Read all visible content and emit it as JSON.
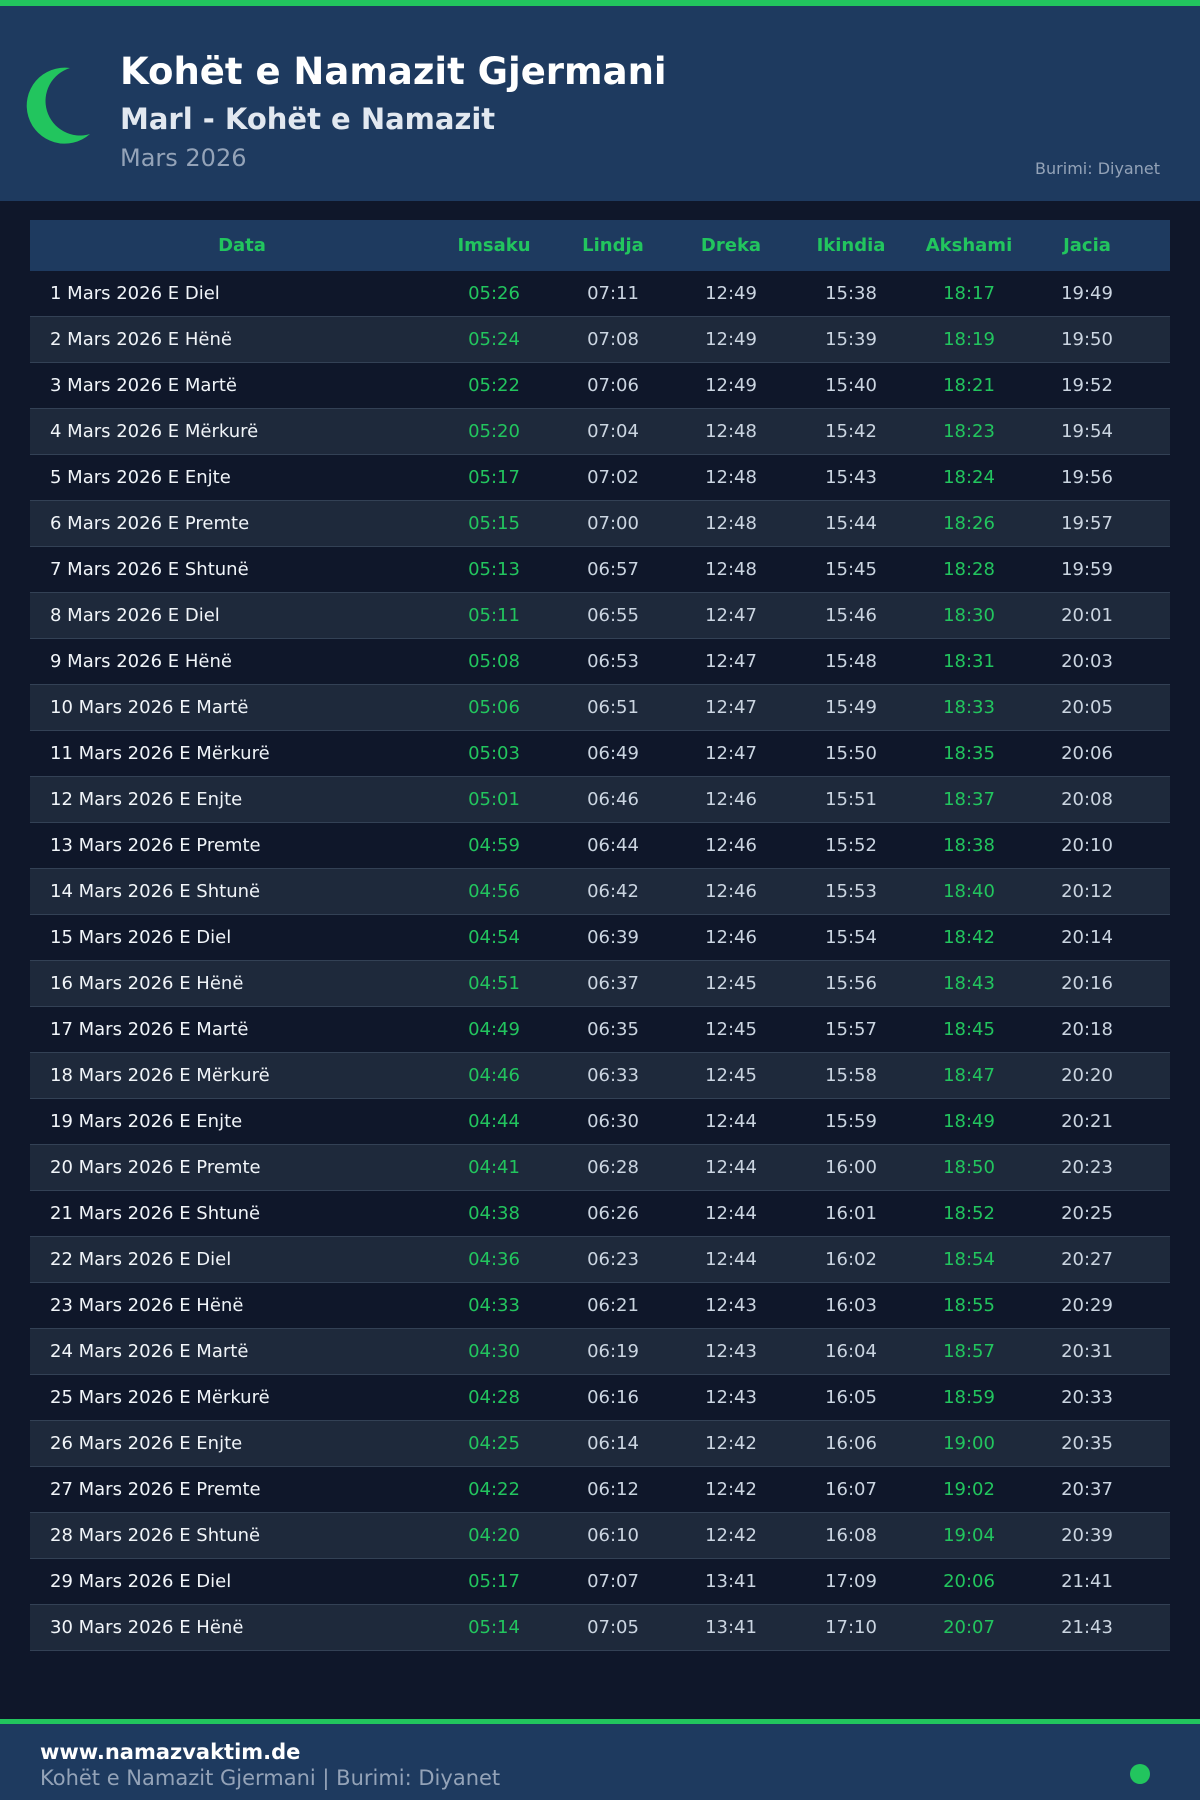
{
  "header": {
    "title": "Kohët e Namazit Gjermani",
    "subtitle": "Marl - Kohët e Namazit",
    "month": "Mars 2026",
    "source": "Burimi: Diyanet"
  },
  "colors": {
    "accent": "#22c55e",
    "header_bg": "#1e3a5f",
    "page_bg": "#0f172a"
  },
  "icons": {
    "logo": "crescent-moon-icon"
  },
  "table": {
    "columns": [
      "Data",
      "Imsaku",
      "Lindja",
      "Dreka",
      "Ikindia",
      "Akshami",
      "Jacia"
    ],
    "rows": [
      [
        "1 Mars 2026 E Diel",
        "05:26",
        "07:11",
        "12:49",
        "15:38",
        "18:17",
        "19:49"
      ],
      [
        "2 Mars 2026 E Hënë",
        "05:24",
        "07:08",
        "12:49",
        "15:39",
        "18:19",
        "19:50"
      ],
      [
        "3 Mars 2026 E Martë",
        "05:22",
        "07:06",
        "12:49",
        "15:40",
        "18:21",
        "19:52"
      ],
      [
        "4 Mars 2026 E Mërkurë",
        "05:20",
        "07:04",
        "12:48",
        "15:42",
        "18:23",
        "19:54"
      ],
      [
        "5 Mars 2026 E Enjte",
        "05:17",
        "07:02",
        "12:48",
        "15:43",
        "18:24",
        "19:56"
      ],
      [
        "6 Mars 2026 E Premte",
        "05:15",
        "07:00",
        "12:48",
        "15:44",
        "18:26",
        "19:57"
      ],
      [
        "7 Mars 2026 E Shtunë",
        "05:13",
        "06:57",
        "12:48",
        "15:45",
        "18:28",
        "19:59"
      ],
      [
        "8 Mars 2026 E Diel",
        "05:11",
        "06:55",
        "12:47",
        "15:46",
        "18:30",
        "20:01"
      ],
      [
        "9 Mars 2026 E Hënë",
        "05:08",
        "06:53",
        "12:47",
        "15:48",
        "18:31",
        "20:03"
      ],
      [
        "10 Mars 2026 E Martë",
        "05:06",
        "06:51",
        "12:47",
        "15:49",
        "18:33",
        "20:05"
      ],
      [
        "11 Mars 2026 E Mërkurë",
        "05:03",
        "06:49",
        "12:47",
        "15:50",
        "18:35",
        "20:06"
      ],
      [
        "12 Mars 2026 E Enjte",
        "05:01",
        "06:46",
        "12:46",
        "15:51",
        "18:37",
        "20:08"
      ],
      [
        "13 Mars 2026 E Premte",
        "04:59",
        "06:44",
        "12:46",
        "15:52",
        "18:38",
        "20:10"
      ],
      [
        "14 Mars 2026 E Shtunë",
        "04:56",
        "06:42",
        "12:46",
        "15:53",
        "18:40",
        "20:12"
      ],
      [
        "15 Mars 2026 E Diel",
        "04:54",
        "06:39",
        "12:46",
        "15:54",
        "18:42",
        "20:14"
      ],
      [
        "16 Mars 2026 E Hënë",
        "04:51",
        "06:37",
        "12:45",
        "15:56",
        "18:43",
        "20:16"
      ],
      [
        "17 Mars 2026 E Martë",
        "04:49",
        "06:35",
        "12:45",
        "15:57",
        "18:45",
        "20:18"
      ],
      [
        "18 Mars 2026 E Mërkurë",
        "04:46",
        "06:33",
        "12:45",
        "15:58",
        "18:47",
        "20:20"
      ],
      [
        "19 Mars 2026 E Enjte",
        "04:44",
        "06:30",
        "12:44",
        "15:59",
        "18:49",
        "20:21"
      ],
      [
        "20 Mars 2026 E Premte",
        "04:41",
        "06:28",
        "12:44",
        "16:00",
        "18:50",
        "20:23"
      ],
      [
        "21 Mars 2026 E Shtunë",
        "04:38",
        "06:26",
        "12:44",
        "16:01",
        "18:52",
        "20:25"
      ],
      [
        "22 Mars 2026 E Diel",
        "04:36",
        "06:23",
        "12:44",
        "16:02",
        "18:54",
        "20:27"
      ],
      [
        "23 Mars 2026 E Hënë",
        "04:33",
        "06:21",
        "12:43",
        "16:03",
        "18:55",
        "20:29"
      ],
      [
        "24 Mars 2026 E Martë",
        "04:30",
        "06:19",
        "12:43",
        "16:04",
        "18:57",
        "20:31"
      ],
      [
        "25 Mars 2026 E Mërkurë",
        "04:28",
        "06:16",
        "12:43",
        "16:05",
        "18:59",
        "20:33"
      ],
      [
        "26 Mars 2026 E Enjte",
        "04:25",
        "06:14",
        "12:42",
        "16:06",
        "19:00",
        "20:35"
      ],
      [
        "27 Mars 2026 E Premte",
        "04:22",
        "06:12",
        "12:42",
        "16:07",
        "19:02",
        "20:37"
      ],
      [
        "28 Mars 2026 E Shtunë",
        "04:20",
        "06:10",
        "12:42",
        "16:08",
        "19:04",
        "20:39"
      ],
      [
        "29 Mars 2026 E Diel",
        "05:17",
        "07:07",
        "13:41",
        "17:09",
        "20:06",
        "21:41"
      ],
      [
        "30 Mars 2026 E Hënë",
        "05:14",
        "07:05",
        "13:41",
        "17:10",
        "20:07",
        "21:43"
      ]
    ]
  },
  "footer": {
    "site": "www.namazvaktim.de",
    "text": "Kohët e Namazit Gjermani | Burimi: Diyanet"
  }
}
